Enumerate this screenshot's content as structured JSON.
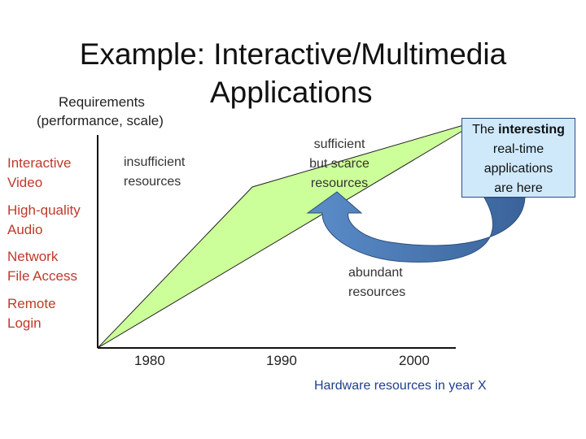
{
  "title": {
    "line1": "Example: Interactive/Multimedia",
    "line2": "Applications"
  },
  "y_axis": {
    "label_line1": "Requirements",
    "label_line2": "(performance, scale)",
    "items": [
      {
        "line1": "Interactive",
        "line2": "Video"
      },
      {
        "line1": "High-quality",
        "line2": "Audio"
      },
      {
        "line1": "Network",
        "line2": "File Access"
      },
      {
        "line1": "Remote",
        "line2": "Login"
      }
    ]
  },
  "x_axis": {
    "label": "Hardware resources in year X",
    "ticks": [
      "1980",
      "1990",
      "2000"
    ]
  },
  "regions": {
    "insufficient": {
      "line1": "insufficient",
      "line2": "resources"
    },
    "sufficient": {
      "line1": "sufficient",
      "line2": "but scarce",
      "line3": "resources"
    },
    "abundant": {
      "line1": "abundant",
      "line2": "resources"
    }
  },
  "callout": {
    "pre": "The ",
    "bold": "interesting",
    "line2": "real-time",
    "line3": "applications",
    "line4": "are here"
  },
  "colors": {
    "wedge": "#ccff99",
    "arrow": "#4f81bd",
    "ylabel": "#c0392b",
    "callout_bg": "#cfe9fb"
  }
}
